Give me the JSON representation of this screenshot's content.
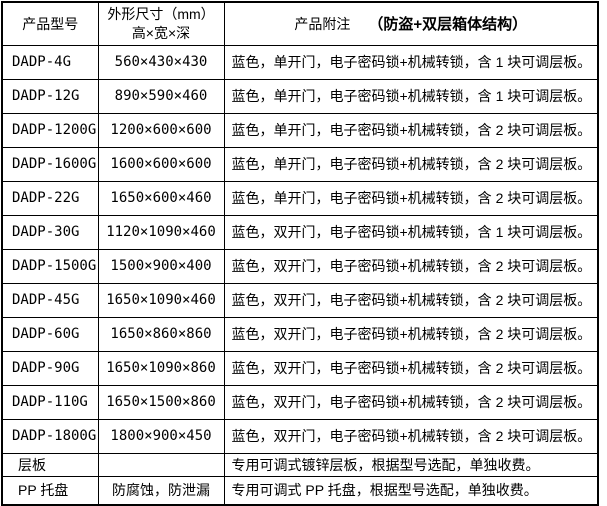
{
  "table": {
    "headers": {
      "model": "产品型号",
      "size_line1": "外形尺寸（mm）",
      "size_line2": "高×宽×深",
      "notes": "产品附注",
      "notes_bold": "（防盗+双层箱体结构）"
    },
    "rows": [
      {
        "model": "DADP-4G",
        "size": "560×430×430",
        "note": "蓝色，单开门，电子密码锁+机械转锁，含 1 块可调层板。"
      },
      {
        "model": "DADP-12G",
        "size": "890×590×460",
        "note": "蓝色，单开门，电子密码锁+机械转锁，含 1 块可调层板。"
      },
      {
        "model": "DADP-1200G",
        "size": "1200×600×600",
        "note": "蓝色，单开门，电子密码锁+机械转锁，含 2 块可调层板。"
      },
      {
        "model": "DADP-1600G",
        "size": "1600×600×600",
        "note": "蓝色，单开门，电子密码锁+机械转锁，含 2 块可调层板。"
      },
      {
        "model": "DADP-22G",
        "size": "1650×600×460",
        "note": "蓝色，单开门，电子密码锁+机械转锁，含 2 块可调层板。"
      },
      {
        "model": "DADP-30G",
        "size": "1120×1090×460",
        "note": "蓝色，双开门，电子密码锁+机械转锁，含 1 块可调层板。"
      },
      {
        "model": "DADP-1500G",
        "size": "1500×900×400",
        "note": "蓝色，双开门，电子密码锁+机械转锁，含 2 块可调层板。"
      },
      {
        "model": "DADP-45G",
        "size": "1650×1090×460",
        "note": "蓝色，双开门，电子密码锁+机械转锁，含 2 块可调层板。"
      },
      {
        "model": "DADP-60G",
        "size": "1650×860×860",
        "note": "蓝色，双开门，电子密码锁+机械转锁，含 2 块可调层板。"
      },
      {
        "model": "DADP-90G",
        "size": "1650×1090×860",
        "note": "蓝色，双开门，电子密码锁+机械转锁，含 2 块可调层板。"
      },
      {
        "model": "DADP-110G",
        "size": "1650×1500×860",
        "note": "蓝色，双开门，电子密码锁+机械转锁，含 2 块可调层板。"
      },
      {
        "model": "DADP-1800G",
        "size": "1800×900×450",
        "note": "蓝色，双开门，电子密码锁+机械转锁，含 2 块可调层板。"
      },
      {
        "model": "层板",
        "size": "",
        "note": "专用可调式镀锌层板，根据型号选配，单独收费。"
      },
      {
        "model": "PP 托盘",
        "size": "防腐蚀，防泄漏",
        "note": "专用可调式 PP 托盘，根据型号选配，单独收费。"
      }
    ]
  },
  "colors": {
    "border": "#000000",
    "text": "#000000",
    "background": "#ffffff"
  }
}
